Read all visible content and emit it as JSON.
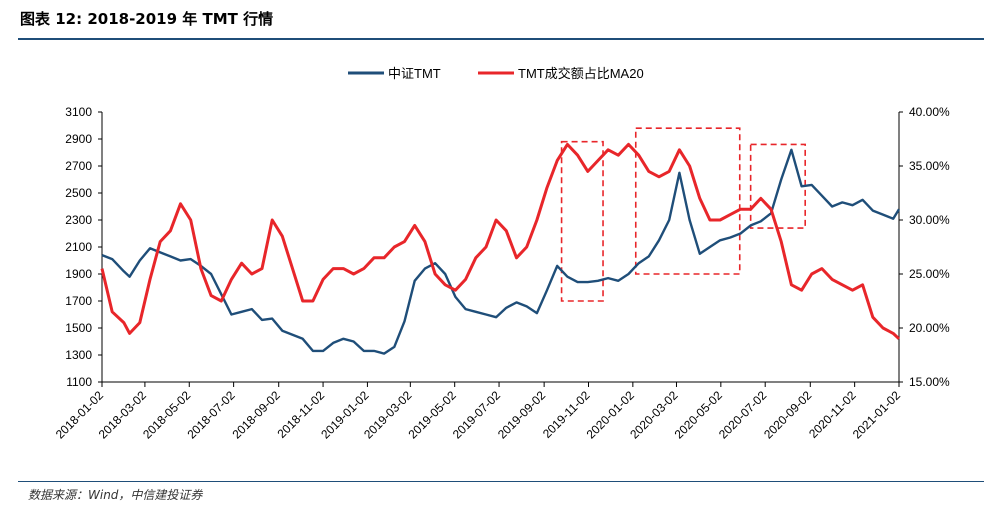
{
  "header": {
    "title": "图表 12: 2018-2019 年 TMT 行情"
  },
  "footer": {
    "source": "数据来源：Wind，中信建投证券"
  },
  "chart_data": {
    "type": "line",
    "legend_position": "top-center",
    "title": "",
    "xlabel": "",
    "ylabel": "",
    "ylim_left": [
      1100,
      3100
    ],
    "ylim_right": [
      0.15,
      0.4
    ],
    "yticks_left": [
      1100,
      1300,
      1500,
      1700,
      1900,
      2100,
      2300,
      2500,
      2700,
      2900,
      3100
    ],
    "yticks_right": [
      "15.00%",
      "20.00%",
      "25.00%",
      "30.00%",
      "35.00%",
      "40.00%"
    ],
    "xticks": [
      "2018-01-02",
      "2018-03-02",
      "2018-05-02",
      "2018-07-02",
      "2018-09-02",
      "2018-11-02",
      "2019-01-02",
      "2019-03-02",
      "2019-05-02",
      "2019-07-02",
      "2019-09-02",
      "2019-11-02",
      "2020-01-02",
      "2020-03-02",
      "2020-05-02",
      "2020-07-02",
      "2020-09-02",
      "2020-11-02",
      "2021-01-02"
    ],
    "series": [
      {
        "name": "中证TMT",
        "axis": "left",
        "color": "#1f4e79",
        "x": [
          "2018-01-02",
          "2018-01-16",
          "2018-02-01",
          "2018-02-09",
          "2018-02-23",
          "2018-03-09",
          "2018-03-23",
          "2018-04-06",
          "2018-04-20",
          "2018-05-04",
          "2018-05-18",
          "2018-06-01",
          "2018-06-15",
          "2018-06-29",
          "2018-07-13",
          "2018-07-27",
          "2018-08-10",
          "2018-08-24",
          "2018-09-07",
          "2018-09-21",
          "2018-10-05",
          "2018-10-19",
          "2018-11-02",
          "2018-11-16",
          "2018-11-30",
          "2018-12-14",
          "2018-12-28",
          "2019-01-11",
          "2019-01-25",
          "2019-02-08",
          "2019-02-22",
          "2019-03-08",
          "2019-03-22",
          "2019-04-05",
          "2019-04-19",
          "2019-05-03",
          "2019-05-17",
          "2019-05-31",
          "2019-06-14",
          "2019-06-28",
          "2019-07-12",
          "2019-07-26",
          "2019-08-09",
          "2019-08-23",
          "2019-09-06",
          "2019-09-20",
          "2019-10-04",
          "2019-10-18",
          "2019-11-01",
          "2019-11-15",
          "2019-11-29",
          "2019-12-13",
          "2019-12-27",
          "2020-01-10",
          "2020-01-24",
          "2020-02-07",
          "2020-02-21",
          "2020-03-06",
          "2020-03-20",
          "2020-04-03",
          "2020-04-17",
          "2020-05-01",
          "2020-05-15",
          "2020-05-29",
          "2020-06-12",
          "2020-06-26",
          "2020-07-10",
          "2020-07-24",
          "2020-08-07",
          "2020-08-21",
          "2020-09-04",
          "2020-09-18",
          "2020-10-02",
          "2020-10-16",
          "2020-10-30",
          "2020-11-13",
          "2020-11-27",
          "2020-12-11",
          "2020-12-25",
          "2021-01-02"
        ],
        "values": [
          2040,
          2010,
          1920,
          1880,
          2000,
          2090,
          2060,
          2030,
          2000,
          2010,
          1960,
          1900,
          1750,
          1600,
          1620,
          1640,
          1560,
          1570,
          1480,
          1450,
          1420,
          1330,
          1330,
          1390,
          1420,
          1400,
          1330,
          1330,
          1310,
          1360,
          1550,
          1850,
          1940,
          1980,
          1900,
          1730,
          1640,
          1620,
          1600,
          1580,
          1650,
          1690,
          1660,
          1610,
          1780,
          1960,
          1880,
          1840,
          1840,
          1850,
          1870,
          1850,
          1900,
          1980,
          2030,
          2150,
          2300,
          2650,
          2300,
          2050,
          2100,
          2150,
          2170,
          2200,
          2260,
          2290,
          2350,
          2600,
          2820,
          2550,
          2560,
          2480,
          2400,
          2430,
          2410,
          2450,
          2370,
          2340,
          2310,
          2380
        ]
      },
      {
        "name": "TMT成交额占比MA20",
        "axis": "right",
        "color": "#e8262a",
        "x": [
          "2018-01-02",
          "2018-01-16",
          "2018-02-01",
          "2018-02-09",
          "2018-02-23",
          "2018-03-09",
          "2018-03-23",
          "2018-04-06",
          "2018-04-20",
          "2018-05-04",
          "2018-05-18",
          "2018-06-01",
          "2018-06-15",
          "2018-06-29",
          "2018-07-13",
          "2018-07-27",
          "2018-08-10",
          "2018-08-24",
          "2018-09-07",
          "2018-09-21",
          "2018-10-05",
          "2018-10-19",
          "2018-11-02",
          "2018-11-16",
          "2018-11-30",
          "2018-12-14",
          "2018-12-28",
          "2019-01-11",
          "2019-01-25",
          "2019-02-08",
          "2019-02-22",
          "2019-03-08",
          "2019-03-22",
          "2019-04-05",
          "2019-04-19",
          "2019-05-03",
          "2019-05-17",
          "2019-05-31",
          "2019-06-14",
          "2019-06-28",
          "2019-07-12",
          "2019-07-26",
          "2019-08-09",
          "2019-08-23",
          "2019-09-06",
          "2019-09-20",
          "2019-10-04",
          "2019-10-18",
          "2019-11-01",
          "2019-11-15",
          "2019-11-29",
          "2019-12-13",
          "2019-12-27",
          "2020-01-10",
          "2020-01-24",
          "2020-02-07",
          "2020-02-21",
          "2020-03-06",
          "2020-03-20",
          "2020-04-03",
          "2020-04-17",
          "2020-05-01",
          "2020-05-15",
          "2020-05-29",
          "2020-06-12",
          "2020-06-26",
          "2020-07-10",
          "2020-07-24",
          "2020-08-07",
          "2020-08-21",
          "2020-09-04",
          "2020-09-18",
          "2020-10-02",
          "2020-10-16",
          "2020-10-30",
          "2020-11-13",
          "2020-11-27",
          "2020-12-11",
          "2020-12-25",
          "2021-01-02"
        ],
        "values": [
          0.255,
          0.215,
          0.205,
          0.195,
          0.205,
          0.245,
          0.28,
          0.29,
          0.315,
          0.3,
          0.255,
          0.23,
          0.225,
          0.245,
          0.26,
          0.25,
          0.255,
          0.3,
          0.285,
          0.255,
          0.225,
          0.225,
          0.245,
          0.255,
          0.255,
          0.25,
          0.255,
          0.265,
          0.265,
          0.275,
          0.28,
          0.295,
          0.28,
          0.25,
          0.24,
          0.235,
          0.245,
          0.265,
          0.275,
          0.3,
          0.29,
          0.265,
          0.275,
          0.3,
          0.33,
          0.355,
          0.37,
          0.36,
          0.345,
          0.355,
          0.365,
          0.36,
          0.37,
          0.36,
          0.345,
          0.34,
          0.345,
          0.365,
          0.35,
          0.32,
          0.3,
          0.3,
          0.305,
          0.31,
          0.31,
          0.32,
          0.31,
          0.28,
          0.24,
          0.235,
          0.25,
          0.255,
          0.245,
          0.24,
          0.235,
          0.24,
          0.21,
          0.2,
          0.195,
          0.19
        ]
      }
    ],
    "annotations": [
      {
        "type": "dashed-box",
        "x_range": [
          "2019-09-26",
          "2019-11-22"
        ],
        "y_range_left": [
          1700,
          2880
        ]
      },
      {
        "type": "dashed-box",
        "x_range": [
          "2020-01-06",
          "2020-05-28"
        ],
        "y_range_left": [
          1900,
          2980
        ]
      },
      {
        "type": "dashed-box",
        "x_range": [
          "2020-06-12",
          "2020-08-26"
        ],
        "y_range_left": [
          2240,
          2860
        ]
      }
    ]
  }
}
